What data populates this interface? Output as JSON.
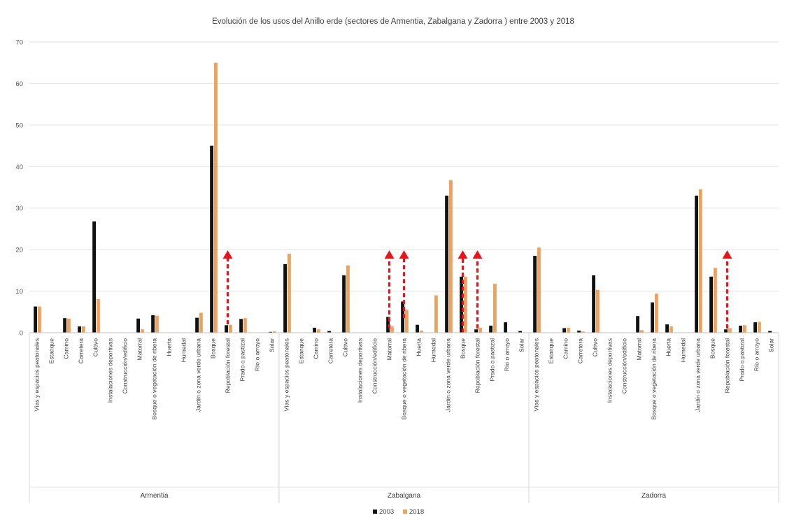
{
  "chart_data": {
    "type": "bar",
    "title": "Evolución de los usos del Anillo erde (sectores de Armentia, Zabalgana y Zadorra ) entre 2003 y 2018",
    "ylim": [
      0,
      70
    ],
    "yticks": [
      0,
      10,
      20,
      30,
      40,
      50,
      60,
      70
    ],
    "grid": true,
    "legend_position": "bottom",
    "groups": [
      {
        "name": "Armentia",
        "categories": [
          "Vías y espacios peatonales",
          "Estanque",
          "Camino",
          "Carretera",
          "Cultivo",
          "Instalaciones deportivas",
          "Construcción/edificio",
          "Matorral",
          "Bosque o vegetación de ribera",
          "Huerta",
          "Humedal",
          "Jardín o zona verde urbana",
          "Bosque",
          "Repoblación forestal",
          "Prado o pastizal",
          "Río o arroyo",
          "Solar"
        ]
      },
      {
        "name": "Zabalgana",
        "categories": [
          "Vías y espacios peatonales",
          "Estanque",
          "Camino",
          "Carretera",
          "Cultivo",
          "Instalaciones deportivas",
          "Construcción/edificio",
          "Matorral",
          "Bosque o vegetación de ribera",
          "Huerta",
          "Humedal",
          "Jardín o zona verde urbana",
          "Bosque",
          "Repoblación forestal",
          "Prado o pastizal",
          "Río o arroyo",
          "Solar"
        ]
      },
      {
        "name": "Zadorra",
        "categories": [
          "Vías y espacios peatonales",
          "Estanque",
          "Camino",
          "Carretera",
          "Cultivo",
          "Instalaciones deportivas",
          "Construcción/edificio",
          "Matorral",
          "Bosque o vegetación de ribera",
          "Huerta",
          "Humedal",
          "Jardín o zona verde urbana",
          "Bosque",
          "Repoblación forestal",
          "Prado o pastizal",
          "Río o arroyo",
          "Solar"
        ]
      }
    ],
    "series": [
      {
        "name": "2003",
        "color": "#111111",
        "values": [
          [
            6.3,
            0,
            3.5,
            1.5,
            26.8,
            0,
            0,
            3.4,
            4.2,
            0,
            0,
            3.6,
            45,
            1.8,
            3.3,
            0,
            0.2
          ],
          [
            16.5,
            0,
            1.2,
            0.4,
            13.8,
            0,
            0,
            3.8,
            7.5,
            1.9,
            0,
            33,
            13.5,
            0.8,
            1.7,
            2.5,
            0.4
          ],
          [
            18.5,
            0,
            1.1,
            0.5,
            13.8,
            0,
            0,
            4,
            7.3,
            2,
            0,
            33,
            13.5,
            0.8,
            1.7,
            2.5,
            0.4
          ]
        ]
      },
      {
        "name": "2018",
        "color": "#f0a15e",
        "values": [
          [
            6.3,
            0,
            3.4,
            1.5,
            8.1,
            0,
            0,
            0.8,
            4.1,
            0,
            0,
            4.8,
            65,
            1.9,
            3.5,
            0,
            0.3
          ],
          [
            19,
            0,
            0.8,
            0,
            16.2,
            0,
            0,
            1.5,
            5.5,
            0.5,
            9,
            36.7,
            13.5,
            1.2,
            11.8,
            0,
            0
          ],
          [
            20.5,
            0,
            1.2,
            0.3,
            10.3,
            0,
            0,
            0.6,
            9.4,
            1.5,
            0,
            34.5,
            15.6,
            1.1,
            1.8,
            2.6,
            0
          ]
        ]
      }
    ],
    "annotations": [
      {
        "type": "arrow",
        "direction": "up",
        "group": 0,
        "category_index": 13,
        "from": 2,
        "to": 19.5,
        "color": "#e8141c"
      },
      {
        "type": "arrow",
        "direction": "up",
        "group": 1,
        "category_index": 7,
        "from": 1,
        "to": 19.5,
        "color": "#e8141c"
      },
      {
        "type": "arrow",
        "direction": "up",
        "group": 1,
        "category_index": 8,
        "from": 3.5,
        "to": 19.5,
        "color": "#e8141c"
      },
      {
        "type": "arrow",
        "direction": "up",
        "group": 1,
        "category_index": 12,
        "from": 0,
        "to": 19.5,
        "color": "#e8141c"
      },
      {
        "type": "arrow",
        "direction": "up",
        "group": 1,
        "category_index": 13,
        "from": 1,
        "to": 19.5,
        "color": "#e8141c"
      },
      {
        "type": "arrow",
        "direction": "up",
        "group": 2,
        "category_index": 13,
        "from": 1,
        "to": 19.5,
        "color": "#e8141c"
      }
    ]
  }
}
